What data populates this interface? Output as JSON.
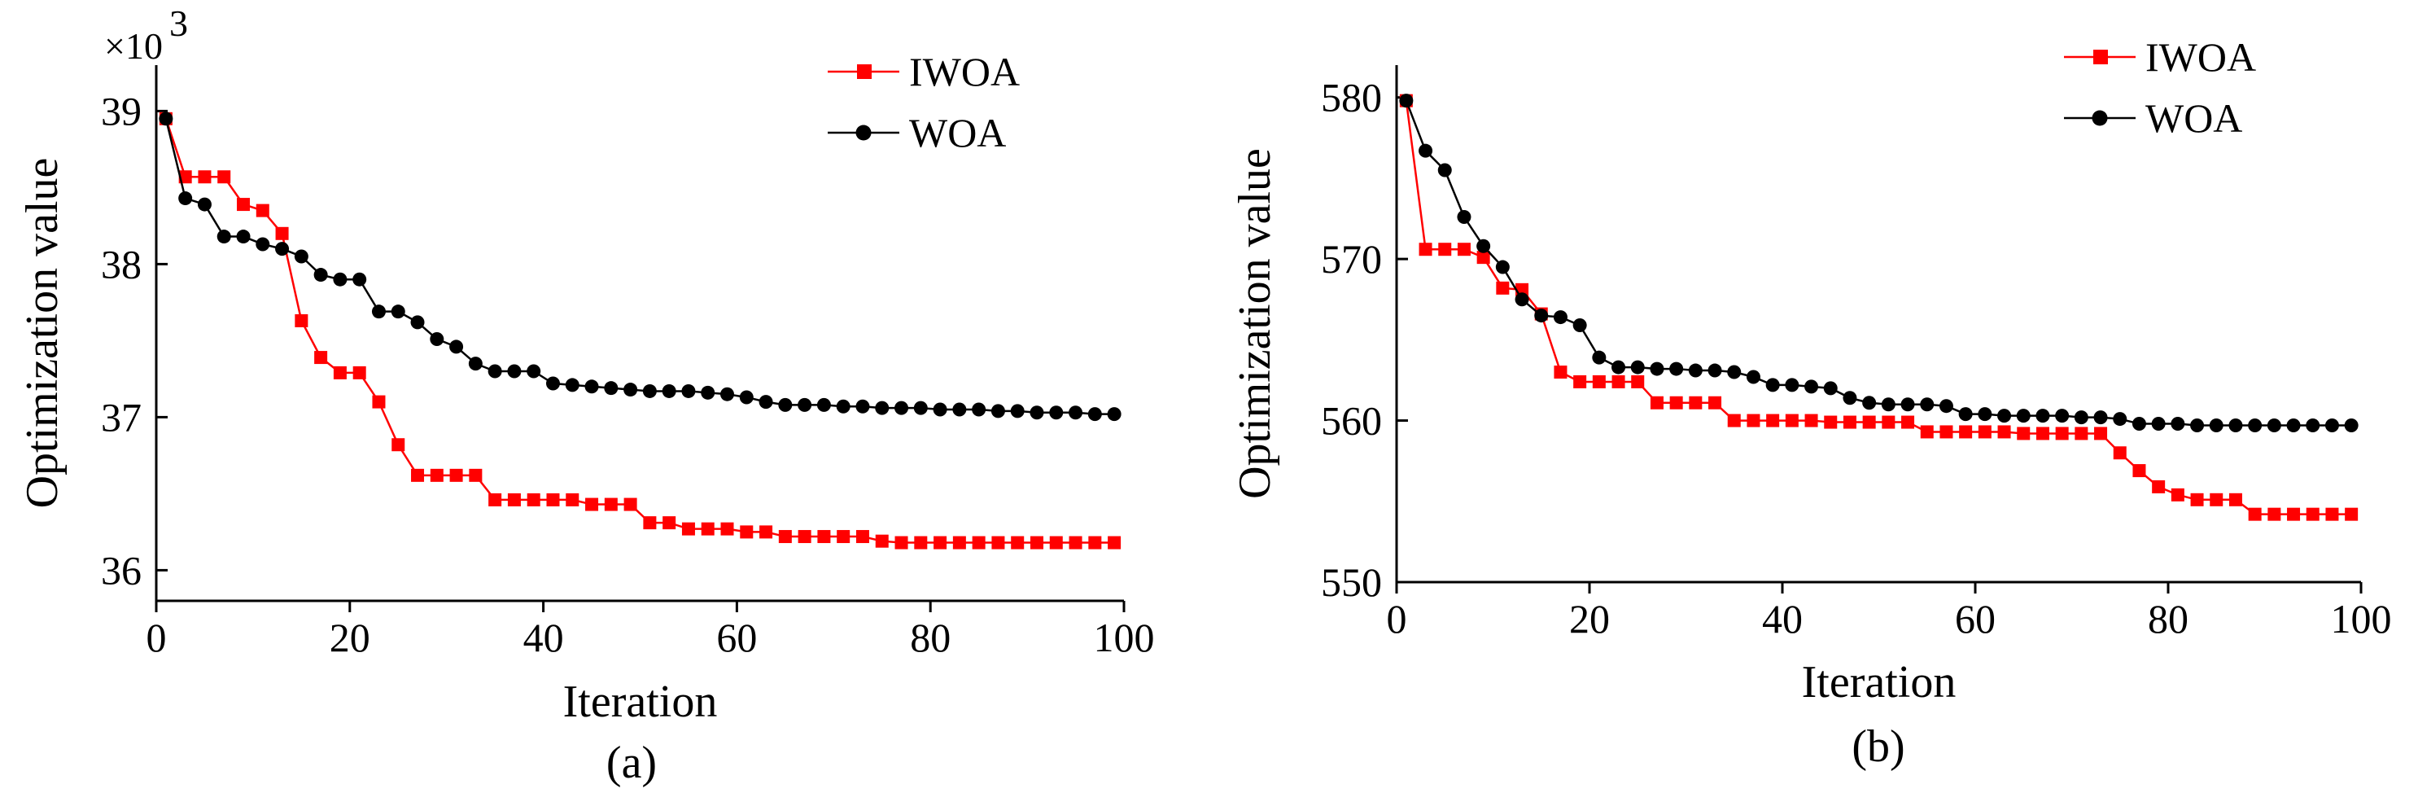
{
  "chart_data": [
    {
      "type": "line",
      "caption": "(a)",
      "xlabel": "Iteration",
      "ylabel": "Optimization value",
      "y_multiplier": "×10",
      "y_multiplier_exp": "3",
      "xlim": [
        0,
        100
      ],
      "ylim": [
        35.8,
        39.3
      ],
      "xticks": [
        0,
        20,
        40,
        60,
        80,
        100
      ],
      "yticks": [
        36,
        37,
        38,
        39
      ],
      "legend": {
        "position": "top-right",
        "entries": [
          "IWOA",
          "WOA"
        ]
      },
      "series": [
        {
          "name": "IWOA",
          "color": "#ff0000",
          "marker": "square",
          "x": [
            1,
            3,
            5,
            7,
            9,
            11,
            13,
            15,
            17,
            19,
            21,
            23,
            25,
            27,
            29,
            31,
            33,
            35,
            37,
            39,
            41,
            43,
            45,
            47,
            49,
            51,
            53,
            55,
            57,
            59,
            61,
            63,
            65,
            67,
            69,
            71,
            73,
            75,
            77,
            79,
            81,
            83,
            85,
            87,
            89,
            91,
            93,
            95,
            97,
            99
          ],
          "y": [
            38.95,
            38.57,
            38.57,
            38.57,
            38.39,
            38.35,
            38.2,
            37.63,
            37.39,
            37.29,
            37.29,
            37.1,
            36.82,
            36.62,
            36.62,
            36.62,
            36.62,
            36.46,
            36.46,
            36.46,
            36.46,
            36.46,
            36.43,
            36.43,
            36.43,
            36.31,
            36.31,
            36.27,
            36.27,
            36.27,
            36.25,
            36.25,
            36.22,
            36.22,
            36.22,
            36.22,
            36.22,
            36.19,
            36.18,
            36.18,
            36.18,
            36.18,
            36.18,
            36.18,
            36.18,
            36.18,
            36.18,
            36.18,
            36.18,
            36.18
          ]
        },
        {
          "name": "WOA",
          "color": "#000000",
          "marker": "circle",
          "x": [
            1,
            3,
            5,
            7,
            9,
            11,
            13,
            15,
            17,
            19,
            21,
            23,
            25,
            27,
            29,
            31,
            33,
            35,
            37,
            39,
            41,
            43,
            45,
            47,
            49,
            51,
            53,
            55,
            57,
            59,
            61,
            63,
            65,
            67,
            69,
            71,
            73,
            75,
            77,
            79,
            81,
            83,
            85,
            87,
            89,
            91,
            93,
            95,
            97,
            99
          ],
          "y": [
            38.95,
            38.43,
            38.39,
            38.18,
            38.18,
            38.13,
            38.1,
            38.05,
            37.93,
            37.9,
            37.9,
            37.69,
            37.69,
            37.62,
            37.51,
            37.46,
            37.35,
            37.3,
            37.3,
            37.3,
            37.22,
            37.21,
            37.2,
            37.19,
            37.18,
            37.17,
            37.17,
            37.17,
            37.16,
            37.15,
            37.13,
            37.1,
            37.08,
            37.08,
            37.08,
            37.07,
            37.07,
            37.06,
            37.06,
            37.06,
            37.05,
            37.05,
            37.05,
            37.04,
            37.04,
            37.03,
            37.03,
            37.03,
            37.02,
            37.02
          ]
        }
      ]
    },
    {
      "type": "line",
      "caption": "(b)",
      "xlabel": "Iteration",
      "ylabel": "Optimization value",
      "xlim": [
        0,
        100
      ],
      "ylim": [
        550,
        582
      ],
      "xticks": [
        0,
        20,
        40,
        60,
        80,
        100
      ],
      "yticks": [
        550,
        560,
        570,
        580
      ],
      "legend": {
        "position": "top-right",
        "entries": [
          "IWOA",
          "WOA"
        ]
      },
      "series": [
        {
          "name": "IWOA",
          "color": "#ff0000",
          "marker": "square",
          "x": [
            1,
            3,
            5,
            7,
            9,
            11,
            13,
            15,
            17,
            19,
            21,
            23,
            25,
            27,
            29,
            31,
            33,
            35,
            37,
            39,
            41,
            43,
            45,
            47,
            49,
            51,
            53,
            55,
            57,
            59,
            61,
            63,
            65,
            67,
            69,
            71,
            73,
            75,
            77,
            79,
            81,
            83,
            85,
            87,
            89,
            91,
            93,
            95,
            97,
            99
          ],
          "y": [
            579.8,
            570.6,
            570.6,
            570.6,
            570.1,
            568.2,
            568.1,
            566.6,
            563.0,
            562.4,
            562.4,
            562.4,
            562.4,
            561.1,
            561.1,
            561.1,
            561.1,
            560.0,
            560.0,
            560.0,
            560.0,
            560.0,
            559.9,
            559.9,
            559.9,
            559.9,
            559.9,
            559.3,
            559.3,
            559.3,
            559.3,
            559.3,
            559.2,
            559.2,
            559.2,
            559.2,
            559.2,
            558.0,
            556.9,
            555.9,
            555.4,
            555.1,
            555.1,
            555.1,
            554.2,
            554.2,
            554.2,
            554.2,
            554.2,
            554.2
          ]
        },
        {
          "name": "WOA",
          "color": "#000000",
          "marker": "circle",
          "x": [
            1,
            3,
            5,
            7,
            9,
            11,
            13,
            15,
            17,
            19,
            21,
            23,
            25,
            27,
            29,
            31,
            33,
            35,
            37,
            39,
            41,
            43,
            45,
            47,
            49,
            51,
            53,
            55,
            57,
            59,
            61,
            63,
            65,
            67,
            69,
            71,
            73,
            75,
            77,
            79,
            81,
            83,
            85,
            87,
            89,
            91,
            93,
            95,
            97,
            99
          ],
          "y": [
            579.8,
            576.7,
            575.5,
            572.6,
            570.8,
            569.5,
            567.5,
            566.5,
            566.4,
            565.9,
            563.9,
            563.3,
            563.3,
            563.2,
            563.2,
            563.1,
            563.1,
            563.0,
            562.7,
            562.2,
            562.2,
            562.1,
            562.0,
            561.4,
            561.1,
            561.0,
            561.0,
            561.0,
            560.9,
            560.4,
            560.4,
            560.3,
            560.3,
            560.3,
            560.3,
            560.2,
            560.2,
            560.1,
            559.8,
            559.8,
            559.8,
            559.7,
            559.7,
            559.7,
            559.7,
            559.7,
            559.7,
            559.7,
            559.7,
            559.7
          ]
        }
      ]
    }
  ]
}
